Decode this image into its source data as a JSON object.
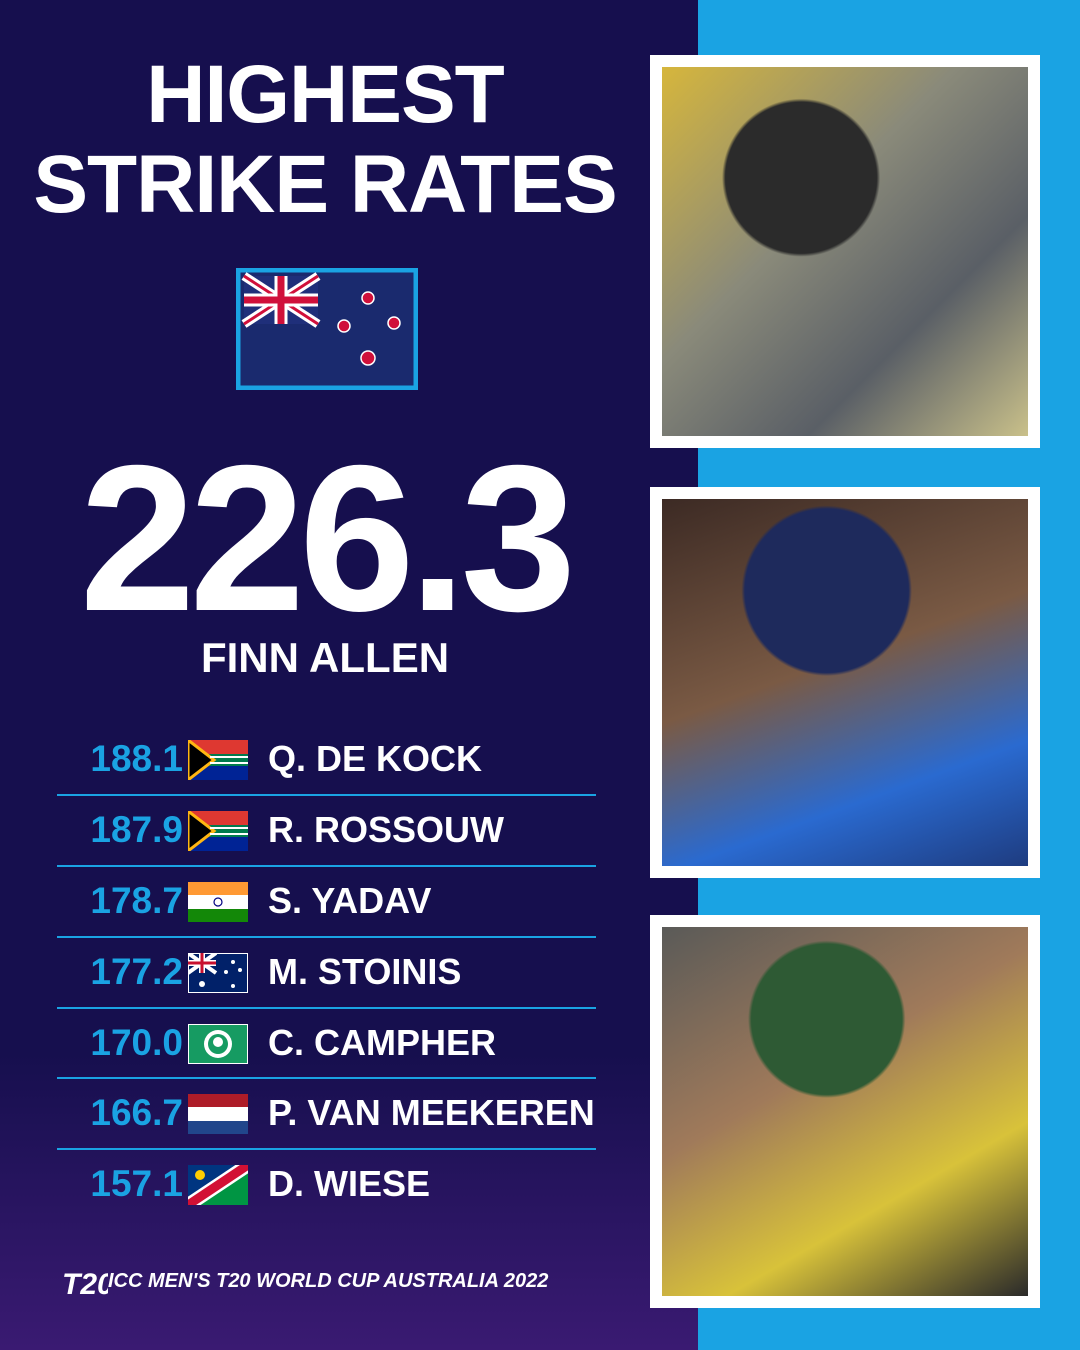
{
  "title": {
    "line1": "HIGHEST",
    "line2": "STRIKE RATES"
  },
  "leader": {
    "value": "226.3",
    "name": "FINN ALLEN"
  },
  "rows": [
    {
      "value": "188.1",
      "name": "Q. DE KOCK"
    },
    {
      "value": "187.9",
      "name": "R. ROSSOUW"
    },
    {
      "value": "178.7",
      "name": "S. YADAV"
    },
    {
      "value": "177.2",
      "name": "M. STOINIS"
    },
    {
      "value": "170.0",
      "name": "C. CAMPHER"
    },
    {
      "value": "166.7",
      "name": "P. VAN MEEKEREN"
    },
    {
      "value": "157.1",
      "name": "D. WIESE"
    }
  ],
  "footer": "ICC MEN'S T20 WORLD CUP AUSTRALIA 2022"
}
